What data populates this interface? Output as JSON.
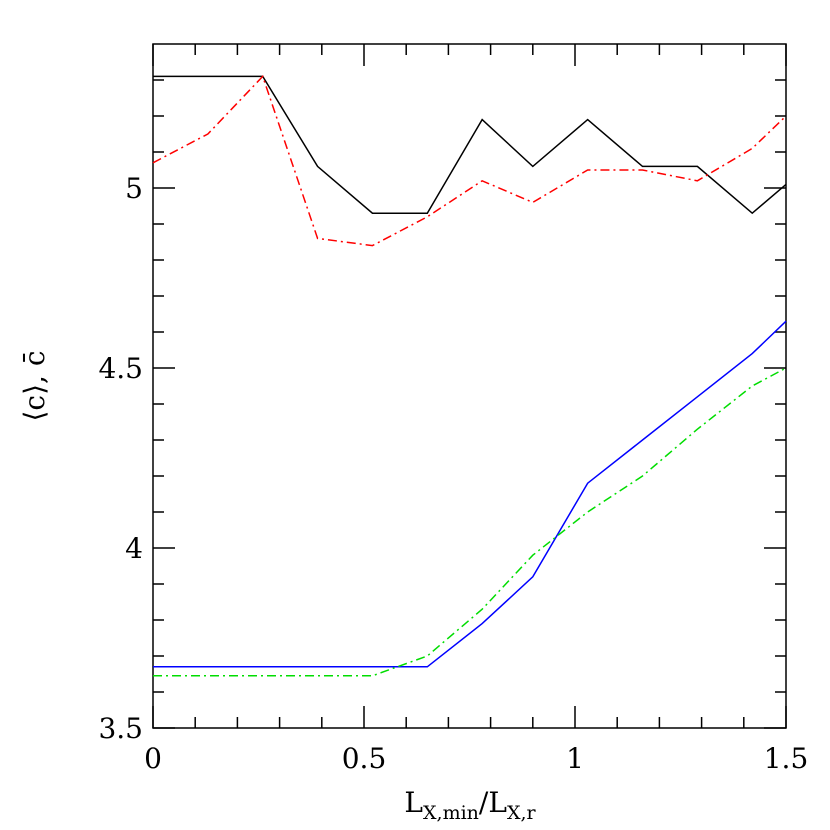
{
  "chart_data": {
    "type": "line",
    "xlabel": [
      "L",
      "X,min",
      "/L",
      "X,r"
    ],
    "ylabel": "⟨c⟩, c̄",
    "xlim": [
      0,
      1.5
    ],
    "ylim": [
      3.5,
      5.4
    ],
    "xticks": [
      0,
      0.5,
      1,
      1.5
    ],
    "yticks": [
      3.5,
      4,
      4.5,
      5
    ],
    "xminorticks": [
      0.1,
      0.2,
      0.3,
      0.4,
      0.6,
      0.7,
      0.8,
      0.9,
      1.1,
      1.2,
      1.3,
      1.4
    ],
    "yminorticks": [
      3.6,
      3.7,
      3.8,
      3.9,
      4.1,
      4.2,
      4.3,
      4.4,
      4.6,
      4.7,
      4.8,
      4.9,
      5.1,
      5.2,
      5.3
    ],
    "x": [
      0,
      0.13,
      0.26,
      0.39,
      0.52,
      0.65,
      0.78,
      0.9,
      1.03,
      1.16,
      1.29,
      1.42,
      1.5
    ],
    "series": [
      {
        "color": "#000000",
        "style": "solid",
        "values": [
          5.31,
          5.31,
          5.31,
          5.06,
          4.93,
          4.93,
          5.19,
          5.06,
          5.19,
          5.06,
          5.06,
          4.93,
          5.01
        ]
      },
      {
        "color": "#ff0000",
        "style": "dashdot",
        "values": [
          5.07,
          5.15,
          5.31,
          4.86,
          4.84,
          4.92,
          5.02,
          4.96,
          5.05,
          5.05,
          5.02,
          5.11,
          5.2
        ]
      },
      {
        "color": "#0000ff",
        "style": "solid",
        "values": [
          3.67,
          3.67,
          3.67,
          3.67,
          3.67,
          3.67,
          3.79,
          3.92,
          4.18,
          4.3,
          4.42,
          4.54,
          4.63
        ]
      },
      {
        "color": "#00dd00",
        "style": "dashdot",
        "values": [
          3.645,
          3.645,
          3.645,
          3.645,
          3.645,
          3.7,
          3.83,
          3.98,
          4.1,
          4.2,
          4.33,
          4.45,
          4.5
        ]
      }
    ]
  }
}
